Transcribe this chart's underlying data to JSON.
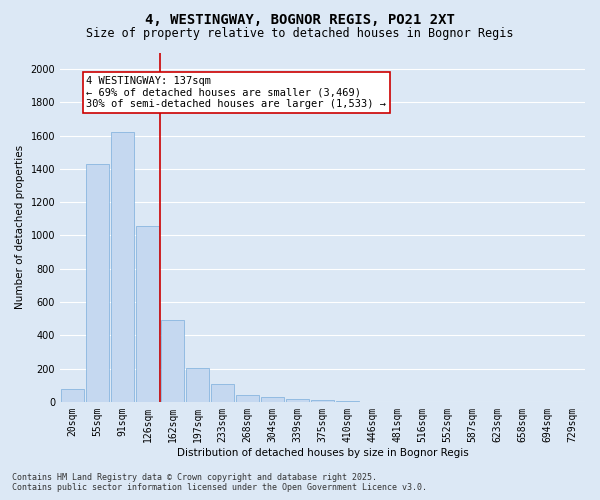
{
  "title1": "4, WESTINGWAY, BOGNOR REGIS, PO21 2XT",
  "title2": "Size of property relative to detached houses in Bognor Regis",
  "xlabel": "Distribution of detached houses by size in Bognor Regis",
  "ylabel": "Number of detached properties",
  "categories": [
    "20sqm",
    "55sqm",
    "91sqm",
    "126sqm",
    "162sqm",
    "197sqm",
    "233sqm",
    "268sqm",
    "304sqm",
    "339sqm",
    "375sqm",
    "410sqm",
    "446sqm",
    "481sqm",
    "516sqm",
    "552sqm",
    "587sqm",
    "623sqm",
    "658sqm",
    "694sqm",
    "729sqm"
  ],
  "values": [
    75,
    1430,
    1620,
    1060,
    490,
    205,
    105,
    40,
    30,
    18,
    10,
    5,
    0,
    0,
    0,
    0,
    0,
    0,
    0,
    0,
    0
  ],
  "bar_color": "#c5d8f0",
  "bar_edge_color": "#7aaedc",
  "vline_x": 3.5,
  "vline_color": "#cc0000",
  "annotation_text": "4 WESTINGWAY: 137sqm\n← 69% of detached houses are smaller (3,469)\n30% of semi-detached houses are larger (1,533) →",
  "box_color": "white",
  "box_edge_color": "#cc0000",
  "ylim": [
    0,
    2100
  ],
  "yticks": [
    0,
    200,
    400,
    600,
    800,
    1000,
    1200,
    1400,
    1600,
    1800,
    2000
  ],
  "footer1": "Contains HM Land Registry data © Crown copyright and database right 2025.",
  "footer2": "Contains public sector information licensed under the Open Government Licence v3.0.",
  "background_color": "#dce8f5",
  "plot_bg_color": "#dce8f5",
  "grid_color": "#ffffff",
  "title_fontsize": 10,
  "subtitle_fontsize": 8.5,
  "axis_label_fontsize": 7.5,
  "tick_fontsize": 7,
  "annotation_fontsize": 7.5,
  "footer_fontsize": 6
}
